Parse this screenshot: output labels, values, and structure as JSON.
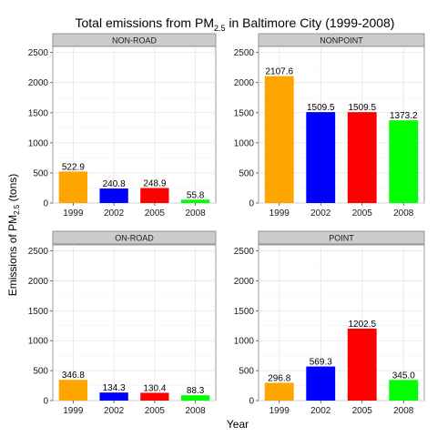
{
  "chart_data": {
    "type": "bar",
    "title": {
      "prefix": "Total emissions from PM",
      "subscript": "2.5",
      "suffix": " in Baltimore City (1999-2008)"
    },
    "xlabel": "Year",
    "ylabel": {
      "prefix": "Emissions of PM",
      "subscript": "2.5",
      "suffix": " (tons)"
    },
    "categories": [
      "1999",
      "2002",
      "2005",
      "2008"
    ],
    "bar_colors": [
      "#FFA500",
      "#0000FF",
      "#FF0000",
      "#00FF00"
    ],
    "ylim": [
      0,
      2600
    ],
    "yticks": [
      0,
      500,
      1000,
      1500,
      2000,
      2500
    ],
    "grid": true,
    "panels": [
      {
        "name": "NON-ROAD",
        "values": [
          522.9,
          240.8,
          248.9,
          55.8
        ],
        "labels": [
          "522.9",
          "240.8",
          "248.9",
          "55.8"
        ]
      },
      {
        "name": "NONPOINT",
        "values": [
          2107.6,
          1509.5,
          1509.5,
          1373.2
        ],
        "labels": [
          "2107.6",
          "1509.5",
          "1509.5",
          "1373.2"
        ]
      },
      {
        "name": "ON-ROAD",
        "values": [
          346.8,
          134.3,
          130.4,
          88.3
        ],
        "labels": [
          "346.8",
          "134.3",
          "130.4",
          "88.3"
        ]
      },
      {
        "name": "POINT",
        "values": [
          296.8,
          569.3,
          1202.5,
          345.0
        ],
        "labels": [
          "296.8",
          "569.3",
          "1202.5",
          "345.0"
        ]
      }
    ]
  }
}
